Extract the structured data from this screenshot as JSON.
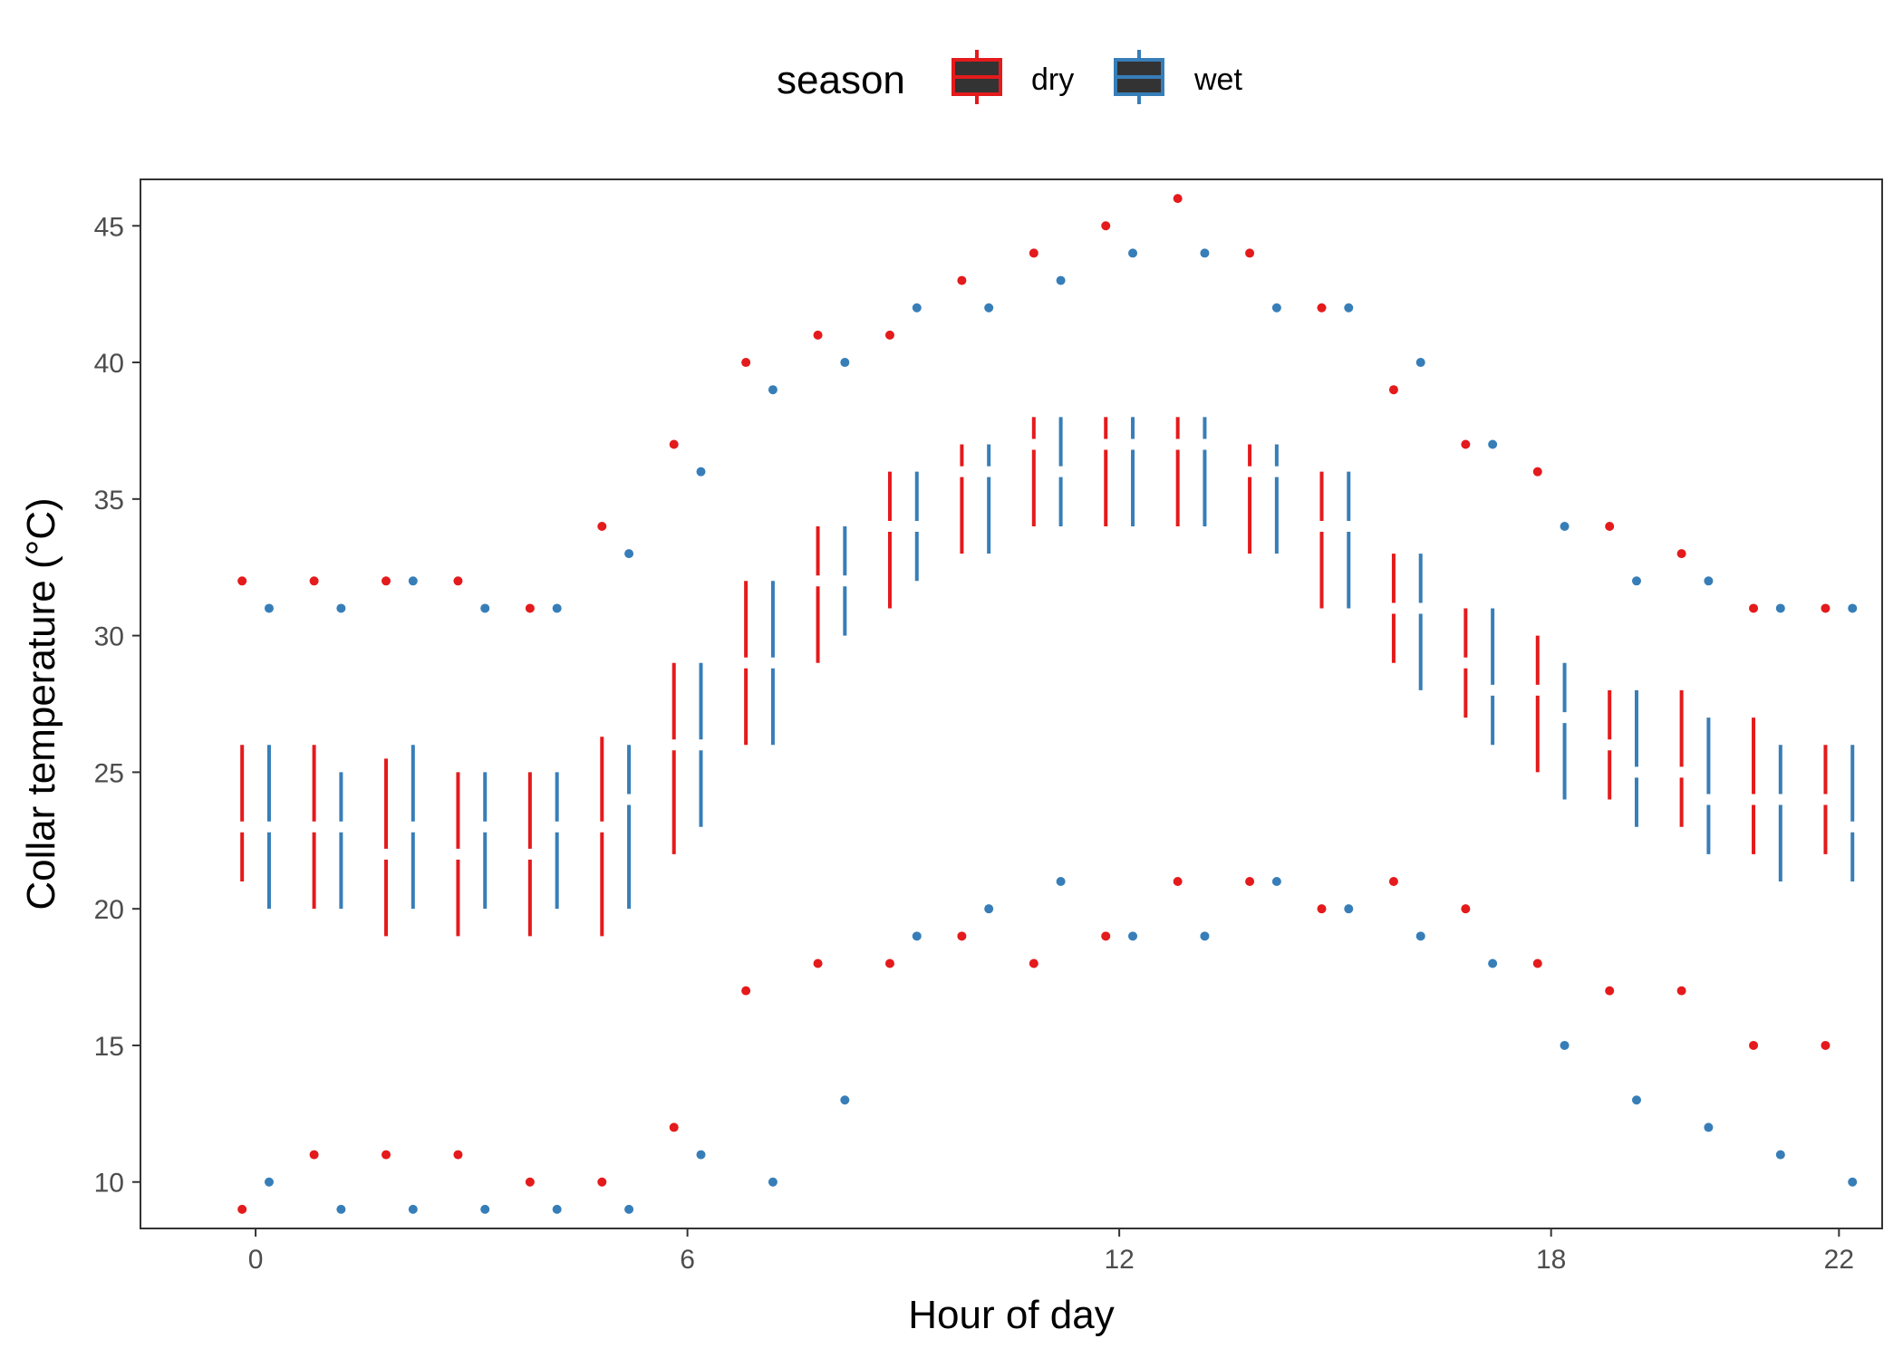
{
  "chart_data": {
    "type": "boxplot",
    "xlabel": "Hour of day",
    "ylabel": "Collar temperature (°C)",
    "xlim": [
      -1.6,
      22.6
    ],
    "ylim": [
      8.3,
      46.7
    ],
    "x_ticks": [
      0,
      6,
      12,
      18,
      22
    ],
    "y_ticks": [
      10,
      15,
      20,
      25,
      30,
      35,
      40,
      45
    ],
    "grid": false,
    "legend": {
      "title": "season",
      "position": "top"
    },
    "series": [
      {
        "name": "dry",
        "color": "#E41A1C",
        "boxes": [
          {
            "hour": 0,
            "lower": 21,
            "q1": 21,
            "median": 23,
            "q3": 26,
            "upper": 26,
            "outliers": [
              9,
              32
            ]
          },
          {
            "hour": 1,
            "lower": 20,
            "q1": 20,
            "median": 23,
            "q3": 26,
            "upper": 26,
            "outliers": [
              11,
              32
            ]
          },
          {
            "hour": 2,
            "lower": 19,
            "q1": 19,
            "median": 22,
            "q3": 25.5,
            "upper": 25.5,
            "outliers": [
              11,
              32
            ]
          },
          {
            "hour": 3,
            "lower": 19,
            "q1": 19,
            "median": 22,
            "q3": 25,
            "upper": 25,
            "outliers": [
              11,
              32
            ]
          },
          {
            "hour": 4,
            "lower": 19,
            "q1": 19,
            "median": 22,
            "q3": 25,
            "upper": 25,
            "outliers": [
              10,
              31
            ]
          },
          {
            "hour": 5,
            "lower": 19,
            "q1": 19,
            "median": 23,
            "q3": 26.3,
            "upper": 26.3,
            "outliers": [
              10,
              34
            ]
          },
          {
            "hour": 6,
            "lower": 22,
            "q1": 22,
            "median": 26,
            "q3": 29,
            "upper": 29,
            "outliers": [
              12,
              37
            ]
          },
          {
            "hour": 7,
            "lower": 26,
            "q1": 26,
            "median": 29,
            "q3": 32,
            "upper": 32,
            "outliers": [
              17,
              40
            ]
          },
          {
            "hour": 8,
            "lower": 29,
            "q1": 29,
            "median": 32,
            "q3": 34,
            "upper": 34,
            "outliers": [
              18,
              41
            ]
          },
          {
            "hour": 9,
            "lower": 31,
            "q1": 31,
            "median": 34,
            "q3": 36,
            "upper": 36,
            "outliers": [
              18,
              41
            ]
          },
          {
            "hour": 10,
            "lower": 33,
            "q1": 33,
            "median": 36,
            "q3": 37,
            "upper": 37,
            "outliers": [
              19,
              43
            ]
          },
          {
            "hour": 11,
            "lower": 34,
            "q1": 34,
            "median": 37,
            "q3": 38,
            "upper": 38,
            "outliers": [
              18,
              44
            ]
          },
          {
            "hour": 12,
            "lower": 34,
            "q1": 34,
            "median": 37,
            "q3": 38,
            "upper": 38,
            "outliers": [
              19,
              45
            ]
          },
          {
            "hour": 13,
            "lower": 34,
            "q1": 34,
            "median": 37,
            "q3": 38,
            "upper": 38,
            "outliers": [
              21,
              46
            ]
          },
          {
            "hour": 14,
            "lower": 33,
            "q1": 33,
            "median": 36,
            "q3": 37,
            "upper": 37,
            "outliers": [
              21,
              44
            ]
          },
          {
            "hour": 15,
            "lower": 31,
            "q1": 31,
            "median": 34,
            "q3": 36,
            "upper": 36,
            "outliers": [
              20,
              42
            ]
          },
          {
            "hour": 16,
            "lower": 29,
            "q1": 29,
            "median": 31,
            "q3": 33,
            "upper": 33,
            "outliers": [
              21,
              39
            ]
          },
          {
            "hour": 17,
            "lower": 27,
            "q1": 27,
            "median": 29,
            "q3": 31,
            "upper": 31,
            "outliers": [
              20,
              37
            ]
          },
          {
            "hour": 18,
            "lower": 25,
            "q1": 25,
            "median": 28,
            "q3": 30,
            "upper": 30,
            "outliers": [
              18,
              36
            ]
          },
          {
            "hour": 19,
            "lower": 24,
            "q1": 24,
            "median": 26,
            "q3": 28,
            "upper": 28,
            "outliers": [
              17,
              34
            ]
          },
          {
            "hour": 20,
            "lower": 23,
            "q1": 23,
            "median": 25,
            "q3": 28,
            "upper": 28,
            "outliers": [
              17,
              33
            ]
          },
          {
            "hour": 21,
            "lower": 22,
            "q1": 22,
            "median": 24,
            "q3": 27,
            "upper": 27,
            "outliers": [
              15,
              31
            ]
          },
          {
            "hour": 22,
            "lower": 22,
            "q1": 22,
            "median": 24,
            "q3": 26,
            "upper": 26,
            "outliers": [
              15,
              31
            ]
          }
        ]
      },
      {
        "name": "wet",
        "color": "#377EB8",
        "boxes": [
          {
            "hour": 0,
            "lower": 20,
            "q1": 20,
            "median": 23,
            "q3": 26,
            "upper": 26,
            "outliers": [
              10,
              31
            ]
          },
          {
            "hour": 1,
            "lower": 20,
            "q1": 20,
            "median": 23,
            "q3": 25,
            "upper": 25,
            "outliers": [
              9,
              31
            ]
          },
          {
            "hour": 2,
            "lower": 20,
            "q1": 20,
            "median": 23,
            "q3": 26,
            "upper": 26,
            "outliers": [
              9,
              32
            ]
          },
          {
            "hour": 3,
            "lower": 20,
            "q1": 20,
            "median": 23,
            "q3": 25,
            "upper": 25,
            "outliers": [
              9,
              31
            ]
          },
          {
            "hour": 4,
            "lower": 20,
            "q1": 20,
            "median": 23,
            "q3": 25,
            "upper": 25,
            "outliers": [
              9,
              31
            ]
          },
          {
            "hour": 5,
            "lower": 20,
            "q1": 20,
            "median": 24,
            "q3": 26,
            "upper": 26,
            "outliers": [
              9,
              33
            ]
          },
          {
            "hour": 6,
            "lower": 23,
            "q1": 23,
            "median": 26,
            "q3": 29,
            "upper": 29,
            "outliers": [
              11,
              36
            ]
          },
          {
            "hour": 7,
            "lower": 26,
            "q1": 26,
            "median": 29,
            "q3": 32,
            "upper": 32,
            "outliers": [
              10,
              39
            ]
          },
          {
            "hour": 8,
            "lower": 30,
            "q1": 30,
            "median": 32,
            "q3": 34,
            "upper": 34,
            "outliers": [
              13,
              40
            ]
          },
          {
            "hour": 9,
            "lower": 32,
            "q1": 32,
            "median": 34,
            "q3": 36,
            "upper": 36,
            "outliers": [
              19,
              42
            ]
          },
          {
            "hour": 10,
            "lower": 33,
            "q1": 33,
            "median": 36,
            "q3": 37,
            "upper": 37,
            "outliers": [
              20,
              42
            ]
          },
          {
            "hour": 11,
            "lower": 34,
            "q1": 34,
            "median": 36,
            "q3": 38,
            "upper": 38,
            "outliers": [
              21,
              43
            ]
          },
          {
            "hour": 12,
            "lower": 34,
            "q1": 34,
            "median": 37,
            "q3": 38,
            "upper": 38,
            "outliers": [
              19,
              44
            ]
          },
          {
            "hour": 13,
            "lower": 34,
            "q1": 34,
            "median": 37,
            "q3": 38,
            "upper": 38,
            "outliers": [
              19,
              44
            ]
          },
          {
            "hour": 14,
            "lower": 33,
            "q1": 33,
            "median": 36,
            "q3": 37,
            "upper": 37,
            "outliers": [
              21,
              42
            ]
          },
          {
            "hour": 15,
            "lower": 31,
            "q1": 31,
            "median": 34,
            "q3": 36,
            "upper": 36,
            "outliers": [
              20,
              42
            ]
          },
          {
            "hour": 16,
            "lower": 28,
            "q1": 28,
            "median": 31,
            "q3": 33,
            "upper": 33,
            "outliers": [
              19,
              40
            ]
          },
          {
            "hour": 17,
            "lower": 26,
            "q1": 26,
            "median": 28,
            "q3": 31,
            "upper": 31,
            "outliers": [
              18,
              37
            ]
          },
          {
            "hour": 18,
            "lower": 24,
            "q1": 24,
            "median": 27,
            "q3": 29,
            "upper": 29,
            "outliers": [
              15,
              34
            ]
          },
          {
            "hour": 19,
            "lower": 23,
            "q1": 23,
            "median": 25,
            "q3": 28,
            "upper": 28,
            "outliers": [
              13,
              32
            ]
          },
          {
            "hour": 20,
            "lower": 22,
            "q1": 22,
            "median": 24,
            "q3": 27,
            "upper": 27,
            "outliers": [
              12,
              32
            ]
          },
          {
            "hour": 21,
            "lower": 21,
            "q1": 21,
            "median": 24,
            "q3": 26,
            "upper": 26,
            "outliers": [
              11,
              31
            ]
          },
          {
            "hour": 22,
            "lower": 21,
            "q1": 21,
            "median": 23,
            "q3": 26,
            "upper": 26,
            "outliers": [
              10,
              31
            ]
          }
        ]
      }
    ]
  }
}
